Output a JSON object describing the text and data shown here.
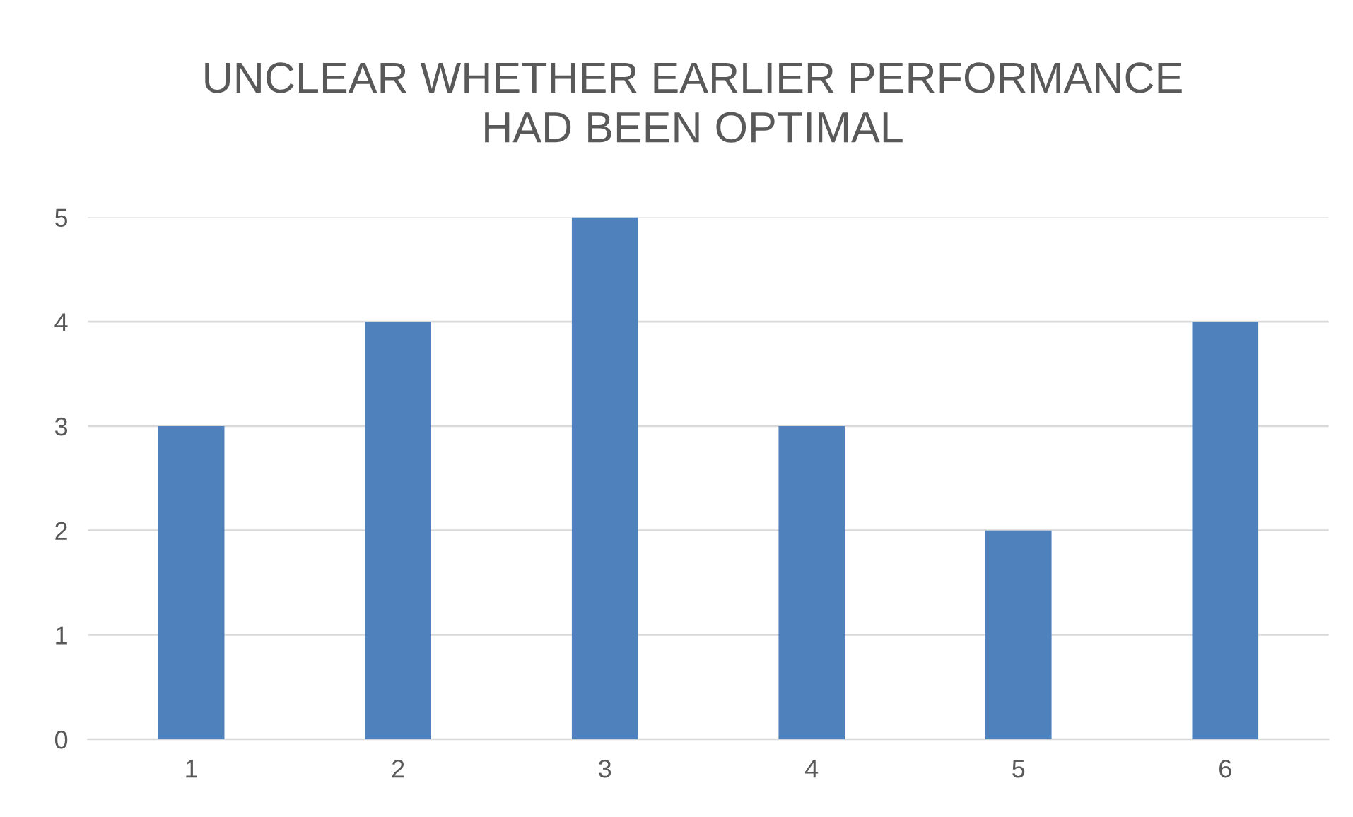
{
  "chart_data": {
    "type": "bar",
    "title": "UNCLEAR WHETHER EARLIER PERFORMANCE\nHAD BEEN OPTIMAL",
    "categories": [
      "1",
      "2",
      "3",
      "4",
      "5",
      "6"
    ],
    "values": [
      3,
      4,
      5,
      3,
      2,
      4
    ],
    "color": "#4f81bd",
    "ylim": [
      0,
      5
    ],
    "yticks": [
      0,
      1,
      2,
      3,
      4,
      5
    ],
    "grid": "y"
  }
}
